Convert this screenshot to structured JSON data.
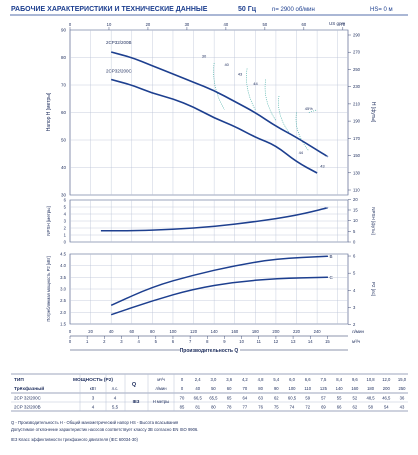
{
  "header": {
    "title": "РАБОЧИЕ ХАРАКТЕРИСТИКИ И ТЕХНИЧЕСКИЕ ДАННЫЕ",
    "freq": "50 Гц",
    "speed": "n= 2900 об/мин",
    "hs": "HS= 0 м"
  },
  "colors": {
    "curve": "#1d3f8f",
    "grid": "#b9c2d6",
    "axis": "#1a2a5a",
    "eff": "#2aa198",
    "frame": "#3a4a7a"
  },
  "chart_data": [
    {
      "type": "line",
      "title": "",
      "ylabel": "Напор H [метры]",
      "ylabel_right": "H [футы]",
      "ylim": [
        30,
        90
      ],
      "xlim": [
        0,
        270
      ],
      "yticks": [
        30,
        40,
        50,
        60,
        70,
        80,
        90
      ],
      "x_top_label": "US gpm",
      "x_top_ticks": [
        0,
        10,
        20,
        30,
        40,
        50,
        60,
        70
      ],
      "y_right_ticks": [
        110,
        130,
        150,
        170,
        190,
        210,
        230,
        250,
        270,
        290
      ],
      "series": [
        {
          "name": "2CP32/200B",
          "x": [
            40,
            60,
            80,
            100,
            120,
            140,
            160,
            180,
            200,
            220,
            250
          ],
          "values": [
            82,
            80,
            77,
            74,
            71,
            68,
            64,
            60,
            55,
            51,
            44
          ]
        },
        {
          "name": "2CP32/200C",
          "x": [
            40,
            60,
            80,
            100,
            120,
            140,
            160,
            180,
            200,
            220,
            240
          ],
          "values": [
            72,
            70,
            67,
            65,
            62,
            58,
            55,
            51,
            48,
            42,
            38
          ]
        }
      ],
      "annotations": [
        "30",
        "40",
        "43",
        "44",
        "45%",
        "44",
        "43"
      ]
    },
    {
      "type": "line",
      "ylabel": "NPSH [метры]",
      "ylabel_right": "NPSH [футы]",
      "ylim": [
        0,
        6
      ],
      "yticks": [
        0,
        1,
        2,
        3,
        4,
        5,
        6
      ],
      "y_right_ticks": [
        0,
        5,
        10,
        15,
        20
      ],
      "series": [
        {
          "name": "",
          "x": [
            30,
            60,
            100,
            140,
            180,
            220,
            250
          ],
          "values": [
            1.6,
            1.6,
            1.8,
            2.2,
            2.9,
            3.8,
            4.9
          ]
        }
      ]
    },
    {
      "type": "line",
      "ylabel": "Потребляемая мощность P2 [кВт]",
      "ylabel_right": "P2 [лс]",
      "ylim": [
        1.5,
        4.5
      ],
      "yticks": [
        1.5,
        2.0,
        2.5,
        3.0,
        3.5,
        4.0,
        4.5
      ],
      "y_right_ticks": [
        2,
        3,
        4,
        5,
        6
      ],
      "xlabel": "Производительность Q",
      "xticks_lmin": [
        0,
        20,
        40,
        60,
        80,
        100,
        120,
        140,
        160,
        180,
        200,
        220,
        240
      ],
      "xticks_m3h": [
        0,
        1,
        2,
        3,
        4,
        5,
        6,
        7,
        8,
        9,
        10,
        11,
        12,
        13,
        14,
        15
      ],
      "x_unit_top": "л/мин",
      "x_unit_bottom": "м³/ч",
      "series": [
        {
          "name": "B",
          "x": [
            40,
            80,
            120,
            160,
            200,
            250
          ],
          "values": [
            2.3,
            3.1,
            3.6,
            4.0,
            4.3,
            4.4
          ]
        },
        {
          "name": "C",
          "x": [
            40,
            80,
            120,
            160,
            200,
            250
          ],
          "values": [
            1.9,
            2.5,
            3.0,
            3.3,
            3.45,
            3.5
          ]
        }
      ]
    }
  ],
  "table": {
    "col_type": "ТИП",
    "col_type2": "Трёхфазный",
    "col_power": "МОЩНОСТЬ (P2)",
    "col_kw": "кВт",
    "col_hp": "л.с.",
    "q_label": "Q",
    "q_units": [
      "м³/ч",
      "л/мин"
    ],
    "ie_label": "IE3",
    "h_label": "H метры",
    "q_m3h": [
      "0",
      "2,4",
      "3,0",
      "3,6",
      "4,2",
      "4,8",
      "5,4",
      "6,0",
      "6,6",
      "7,5",
      "8,4",
      "9,6",
      "10,8",
      "12,0",
      "15,0"
    ],
    "q_lmin": [
      "0",
      "40",
      "50",
      "60",
      "70",
      "80",
      "90",
      "100",
      "110",
      "125",
      "140",
      "160",
      "180",
      "200",
      "250"
    ],
    "rows": [
      {
        "type": "2CP 32/200C",
        "kw": "3",
        "hp": "4",
        "h": [
          "70",
          "66,5",
          "65,5",
          "65",
          "64",
          "63",
          "62",
          "60,5",
          "59",
          "57",
          "55",
          "52",
          "48,5",
          "46,5",
          "36"
        ]
      },
      {
        "type": "2CP 32/200B",
        "kw": "4",
        "hp": "5,5",
        "h": [
          "85",
          "81",
          "80",
          "78",
          "77",
          "76",
          "75",
          "74",
          "72",
          "69",
          "66",
          "62",
          "58",
          "54",
          "43"
        ]
      }
    ]
  },
  "footnotes": [
    "Q - Производительность  H - Общий манометрический напор  HS - Высота всасывания",
    "Допустимое отклонение характеристик насосов соответствует классу 3B согласно EN ISO 9906.",
    "IE3 Класс эффективности трехфазного двигателя (IEC 60034-30)"
  ]
}
